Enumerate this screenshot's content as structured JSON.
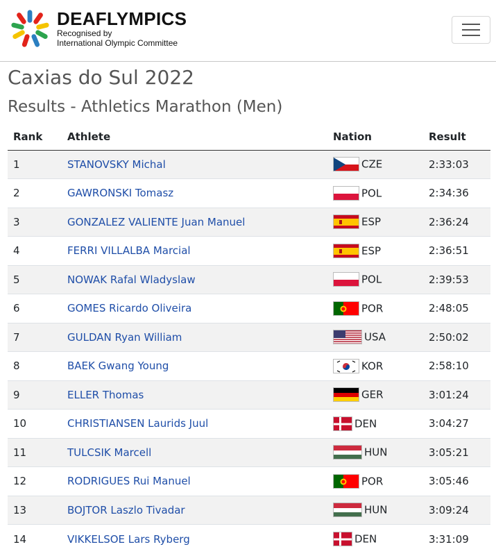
{
  "header": {
    "brand_name": "DEAFLYMPICS",
    "brand_sub1": "Recognised by",
    "brand_sub2": "International Olympic Committee",
    "menu_icon": "hamburger-icon"
  },
  "event_title": "Caxias do Sul 2022",
  "page_title": "Results - Athletics Marathon (Men)",
  "table": {
    "headers": {
      "rank": "Rank",
      "athlete": "Athlete",
      "nation": "Nation",
      "result": "Result"
    },
    "rows": [
      {
        "rank": "1",
        "athlete": "STANOVSKY Michal",
        "nation": "CZE",
        "flag": "cze",
        "result": "2:33:03"
      },
      {
        "rank": "2",
        "athlete": "GAWRONSKI Tomasz",
        "nation": "POL",
        "flag": "pol",
        "result": "2:34:36"
      },
      {
        "rank": "3",
        "athlete": "GONZALEZ VALIENTE Juan Manuel",
        "nation": "ESP",
        "flag": "esp",
        "result": "2:36:24"
      },
      {
        "rank": "4",
        "athlete": "FERRI VILLALBA Marcial",
        "nation": "ESP",
        "flag": "esp",
        "result": "2:36:51"
      },
      {
        "rank": "5",
        "athlete": "NOWAK Rafal Wladyslaw",
        "nation": "POL",
        "flag": "pol",
        "result": "2:39:53"
      },
      {
        "rank": "6",
        "athlete": "GOMES Ricardo Oliveira",
        "nation": "POR",
        "flag": "por",
        "result": "2:48:05"
      },
      {
        "rank": "7",
        "athlete": "GULDAN Ryan William",
        "nation": "USA",
        "flag": "usa",
        "result": "2:50:02"
      },
      {
        "rank": "8",
        "athlete": "BAEK Gwang Young",
        "nation": "KOR",
        "flag": "kor",
        "result": "2:58:10"
      },
      {
        "rank": "9",
        "athlete": "ELLER Thomas",
        "nation": "GER",
        "flag": "ger",
        "result": "3:01:24"
      },
      {
        "rank": "10",
        "athlete": "CHRISTIANSEN Laurids Juul",
        "nation": "DEN",
        "flag": "den",
        "result": "3:04:27"
      },
      {
        "rank": "11",
        "athlete": "TULCSIK Marcell",
        "nation": "HUN",
        "flag": "hun",
        "result": "3:05:21"
      },
      {
        "rank": "12",
        "athlete": "RODRIGUES Rui Manuel",
        "nation": "POR",
        "flag": "por",
        "result": "3:05:46"
      },
      {
        "rank": "13",
        "athlete": "BOJTOR Laszlo Tivadar",
        "nation": "HUN",
        "flag": "hun",
        "result": "3:09:24"
      },
      {
        "rank": "14",
        "athlete": "VIKKELSOE Lars Ryberg",
        "nation": "DEN",
        "flag": "den",
        "result": "3:31:09"
      }
    ]
  },
  "colors": {
    "link": "#1f4ea8",
    "stripe": "#f2f2f2",
    "heading": "#555555"
  }
}
